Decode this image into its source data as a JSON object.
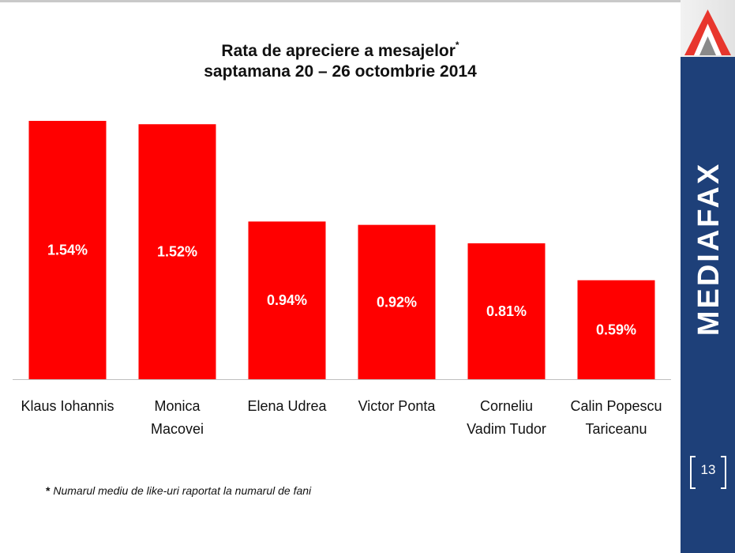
{
  "title_line1": "Rata de apreciere a mesajelor",
  "title_mark": "*",
  "title_line2": "saptamana 20 – 26 octombrie 2014",
  "footnote_mark": "*",
  "footnote": "Numarul mediu de like-uri raportat la numarul de fani",
  "brand": "MEDIAFAX",
  "page_number": "13",
  "colors": {
    "bar": "#ff0000",
    "sidebar": "#1e4079",
    "label": "#ffffff"
  },
  "chart_data": {
    "type": "bar",
    "title": "Rata de apreciere a mesajelor* saptamana 20 – 26 octombrie 2014",
    "categories": [
      [
        "Klaus Iohannis"
      ],
      [
        "Monica",
        "Macovei"
      ],
      [
        "Elena Udrea"
      ],
      [
        "Victor Ponta"
      ],
      [
        "Corneliu",
        "Vadim Tudor"
      ],
      [
        "Calin Popescu",
        "Tariceanu"
      ]
    ],
    "values": [
      1.54,
      1.52,
      0.94,
      0.92,
      0.81,
      0.59
    ],
    "data_labels": [
      "1.54%",
      "1.52%",
      "0.94%",
      "0.92%",
      "0.81%",
      "0.59%"
    ],
    "unit": "%",
    "ylim": [
      0,
      1.54
    ],
    "grid": false,
    "legend": "none"
  }
}
